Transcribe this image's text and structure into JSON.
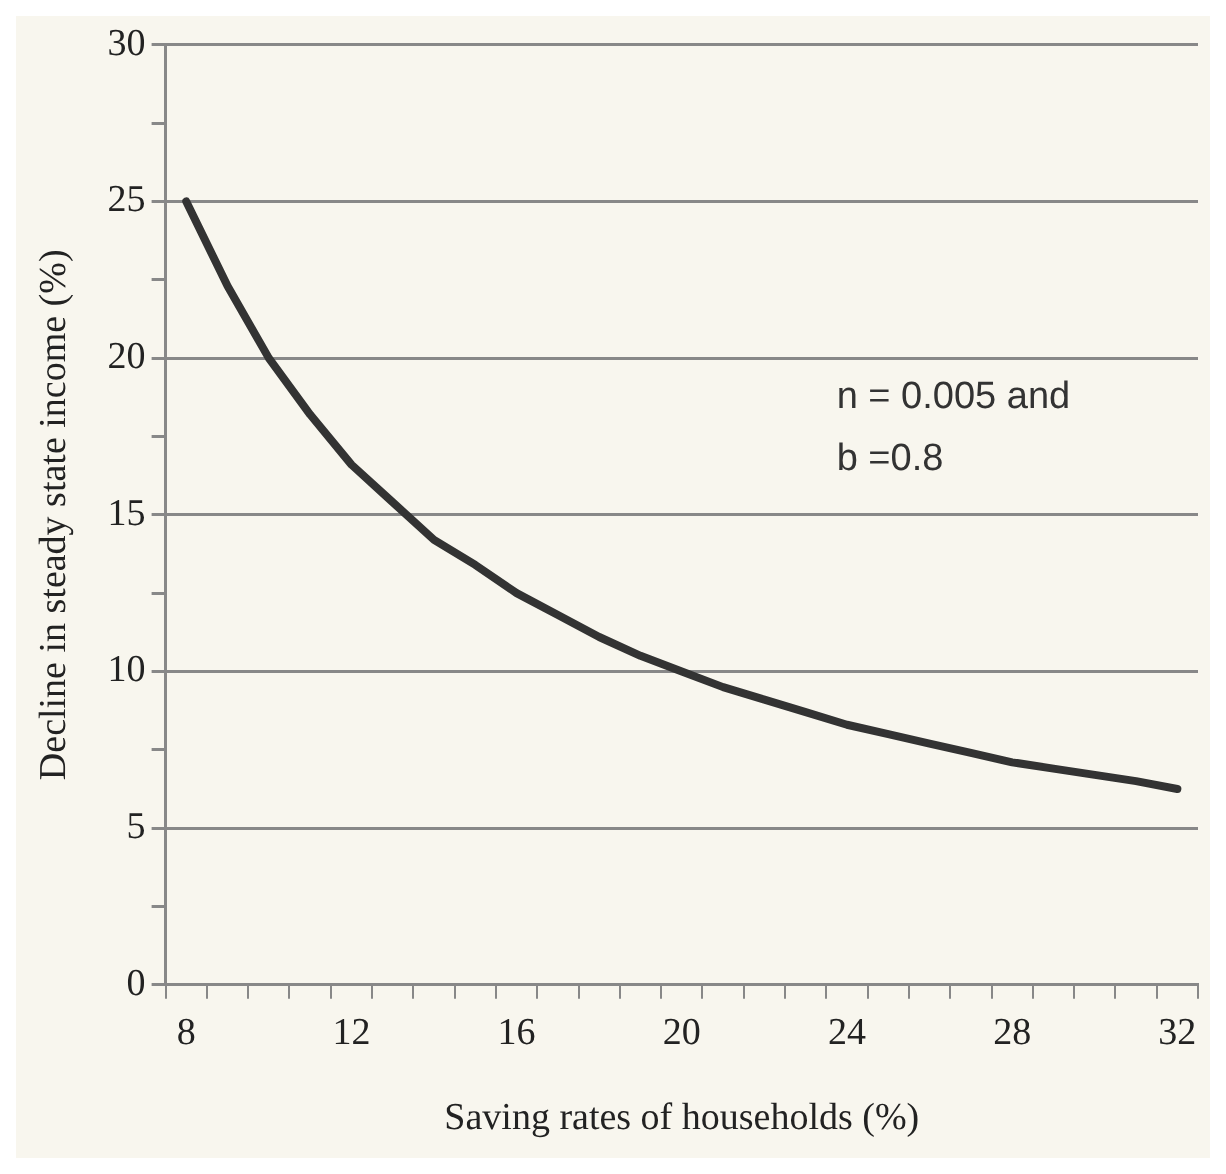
{
  "chart_data": {
    "type": "line",
    "xlabel": "Saving rates of households (%)",
    "ylabel": "Decline in steady state income (%)",
    "categories": [
      "8",
      null,
      null,
      null,
      "12",
      null,
      null,
      null,
      "16",
      null,
      null,
      null,
      "20",
      null,
      null,
      null,
      "24",
      null,
      null,
      null,
      "28",
      null,
      null,
      null,
      "32"
    ],
    "series": [
      {
        "color": "#333333",
        "values": [
          25,
          22.3,
          20,
          18.2,
          16.6,
          15.4,
          14.2,
          13.4,
          12.5,
          11.8,
          11.1,
          10.5,
          10,
          9.5,
          9.1,
          8.7,
          8.3,
          8,
          7.7,
          7.4,
          7.1,
          6.9,
          6.7,
          6.5,
          6.25
        ]
      }
    ],
    "ylim": [
      0,
      30
    ],
    "yticks": [
      0,
      {
        "value": 2.5,
        "label": null
      },
      5,
      {
        "value": 7.5,
        "label": null
      },
      10,
      {
        "value": 12.5,
        "label": null
      },
      15,
      {
        "value": 17.5,
        "label": null
      },
      20,
      {
        "value": 22.5,
        "label": null
      },
      25,
      {
        "value": 27.5,
        "label": null
      },
      30
    ],
    "grid": "y",
    "legend": false,
    "marker": "none",
    "line_style": "solid",
    "annotations": [
      "n = 0.005 and",
      "b =0.8"
    ]
  }
}
